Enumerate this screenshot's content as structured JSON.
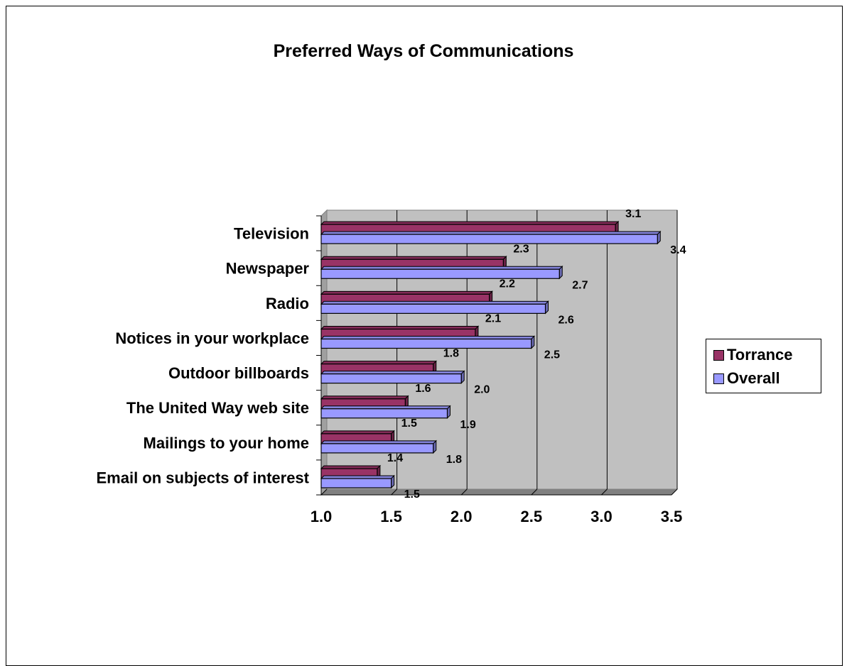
{
  "chart_data": {
    "type": "bar",
    "orientation": "horizontal",
    "title": "Preferred Ways of Communications",
    "categories": [
      "Email on subjects of interest",
      "Mailings to your home",
      "The United Way web site",
      "Outdoor billboards",
      "Notices in your workplace",
      "Radio",
      "Newspaper",
      "Television"
    ],
    "series": [
      {
        "name": "Torrance",
        "color": "#993366",
        "values": [
          1.4,
          1.5,
          1.6,
          1.8,
          2.1,
          2.2,
          2.3,
          3.1
        ]
      },
      {
        "name": "Overall",
        "color": "#9999ff",
        "values": [
          1.5,
          1.8,
          1.9,
          2.0,
          2.5,
          2.6,
          2.7,
          3.4
        ]
      }
    ],
    "xlim": [
      1.0,
      3.5
    ],
    "x_ticks": [
      "1.0",
      "1.5",
      "2.0",
      "2.5",
      "3.0",
      "3.5"
    ],
    "grid": true,
    "legend_position": "right",
    "data_labels": true,
    "wall_color": "#c0c0c0"
  }
}
